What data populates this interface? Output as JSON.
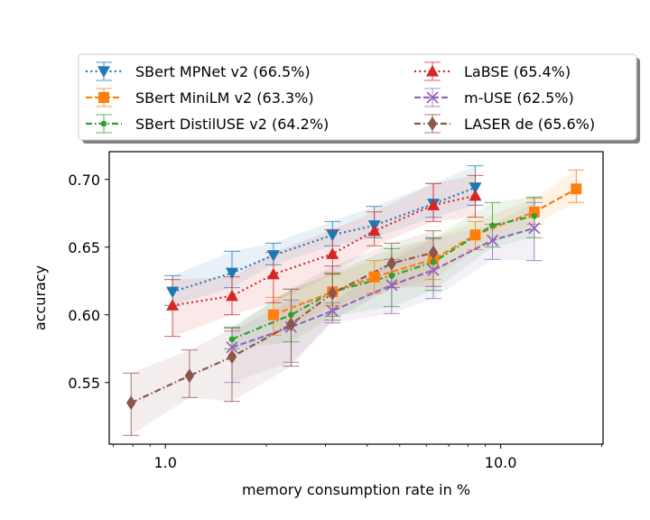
{
  "chart_data": {
    "type": "line",
    "xlabel": "memory consumption rate in %",
    "ylabel": "accuracy",
    "x_scale": "log",
    "xlim": [
      0.68,
      20.2
    ],
    "ylim": [
      0.5045,
      0.7205
    ],
    "x_ticks": [
      {
        "value": 1.0,
        "label": "1.0"
      },
      {
        "value": 10.0,
        "label": "10.0"
      }
    ],
    "y_ticks": [
      {
        "value": 0.55,
        "label": "0.55"
      },
      {
        "value": 0.6,
        "label": "0.60"
      },
      {
        "value": 0.65,
        "label": "0.65"
      },
      {
        "value": 0.7,
        "label": "0.70"
      }
    ],
    "grid": false,
    "legend_position": "top",
    "series": [
      {
        "name": "SBert MPNet v2 (66.5%)",
        "color": "#1f77b4",
        "linestyle": "dotted",
        "marker": "triangle-down",
        "points": [
          {
            "x": 1.05,
            "y": 0.617,
            "lo": 0.607,
            "hi": 0.629
          },
          {
            "x": 1.58,
            "y": 0.631,
            "lo": 0.62,
            "hi": 0.647
          },
          {
            "x": 2.1,
            "y": 0.644,
            "lo": 0.637,
            "hi": 0.653
          },
          {
            "x": 3.15,
            "y": 0.659,
            "lo": 0.651,
            "hi": 0.669
          },
          {
            "x": 4.2,
            "y": 0.666,
            "lo": 0.657,
            "hi": 0.68
          },
          {
            "x": 6.3,
            "y": 0.682,
            "lo": 0.672,
            "hi": 0.697
          },
          {
            "x": 8.4,
            "y": 0.694,
            "lo": 0.681,
            "hi": 0.71
          }
        ]
      },
      {
        "name": "SBert MiniLM v2 (63.3%)",
        "color": "#ff7f0e",
        "linestyle": "dashed",
        "marker": "square",
        "points": [
          {
            "x": 2.1,
            "y": 0.6,
            "lo": 0.585,
            "hi": 0.613
          },
          {
            "x": 3.15,
            "y": 0.617,
            "lo": 0.607,
            "hi": 0.63
          },
          {
            "x": 4.2,
            "y": 0.628,
            "lo": 0.616,
            "hi": 0.64
          },
          {
            "x": 6.3,
            "y": 0.641,
            "lo": 0.626,
            "hi": 0.657
          },
          {
            "x": 8.4,
            "y": 0.659,
            "lo": 0.648,
            "hi": 0.669
          },
          {
            "x": 12.6,
            "y": 0.676,
            "lo": 0.667,
            "hi": 0.686
          },
          {
            "x": 16.8,
            "y": 0.693,
            "lo": 0.683,
            "hi": 0.707
          }
        ]
      },
      {
        "name": "SBert DistilUSE v2 (64.2%)",
        "color": "#2ca02c",
        "linestyle": "dashdot",
        "marker": "point",
        "points": [
          {
            "x": 1.58,
            "y": 0.582,
            "lo": 0.575,
            "hi": 0.591
          },
          {
            "x": 2.37,
            "y": 0.6,
            "lo": 0.58,
            "hi": 0.619
          },
          {
            "x": 3.15,
            "y": 0.617,
            "lo": 0.599,
            "hi": 0.631
          },
          {
            "x": 4.73,
            "y": 0.629,
            "lo": 0.606,
            "hi": 0.649
          },
          {
            "x": 6.3,
            "y": 0.639,
            "lo": 0.618,
            "hi": 0.657
          },
          {
            "x": 9.45,
            "y": 0.666,
            "lo": 0.65,
            "hi": 0.683
          },
          {
            "x": 12.6,
            "y": 0.673,
            "lo": 0.657,
            "hi": 0.687
          }
        ]
      },
      {
        "name": "LaBSE (65.4%)",
        "color": "#d62728",
        "linestyle": "dotted",
        "marker": "triangle-up",
        "points": [
          {
            "x": 1.05,
            "y": 0.607,
            "lo": 0.584,
            "hi": 0.626
          },
          {
            "x": 1.58,
            "y": 0.614,
            "lo": 0.6,
            "hi": 0.628
          },
          {
            "x": 2.1,
            "y": 0.63,
            "lo": 0.609,
            "hi": 0.646
          },
          {
            "x": 3.15,
            "y": 0.645,
            "lo": 0.63,
            "hi": 0.663
          },
          {
            "x": 4.2,
            "y": 0.662,
            "lo": 0.651,
            "hi": 0.676
          },
          {
            "x": 6.3,
            "y": 0.681,
            "lo": 0.669,
            "hi": 0.697
          },
          {
            "x": 8.4,
            "y": 0.688,
            "lo": 0.672,
            "hi": 0.703
          }
        ]
      },
      {
        "name": "m-USE (62.5%)",
        "color": "#9467bd",
        "linestyle": "dashed",
        "marker": "x",
        "points": [
          {
            "x": 1.58,
            "y": 0.576,
            "lo": 0.55,
            "hi": 0.588
          },
          {
            "x": 2.37,
            "y": 0.591,
            "lo": 0.565,
            "hi": 0.611
          },
          {
            "x": 3.15,
            "y": 0.603,
            "lo": 0.594,
            "hi": 0.609
          },
          {
            "x": 4.73,
            "y": 0.622,
            "lo": 0.601,
            "hi": 0.641
          },
          {
            "x": 6.3,
            "y": 0.633,
            "lo": 0.612,
            "hi": 0.656
          },
          {
            "x": 9.45,
            "y": 0.655,
            "lo": 0.641,
            "hi": 0.667
          },
          {
            "x": 12.6,
            "y": 0.664,
            "lo": 0.64,
            "hi": 0.683
          }
        ]
      },
      {
        "name": "LASER de (65.6%)",
        "color": "#8c564b",
        "linestyle": "dashdot",
        "marker": "diamond",
        "points": [
          {
            "x": 0.79,
            "y": 0.535,
            "lo": 0.511,
            "hi": 0.557
          },
          {
            "x": 1.18,
            "y": 0.555,
            "lo": 0.539,
            "hi": 0.574
          },
          {
            "x": 1.58,
            "y": 0.569,
            "lo": 0.536,
            "hi": 0.59
          },
          {
            "x": 2.37,
            "y": 0.593,
            "lo": 0.562,
            "hi": 0.619
          },
          {
            "x": 3.15,
            "y": 0.616,
            "lo": 0.596,
            "hi": 0.636
          },
          {
            "x": 4.73,
            "y": 0.638,
            "lo": 0.62,
            "hi": 0.653
          },
          {
            "x": 6.3,
            "y": 0.646,
            "lo": 0.621,
            "hi": 0.662
          }
        ]
      }
    ]
  }
}
